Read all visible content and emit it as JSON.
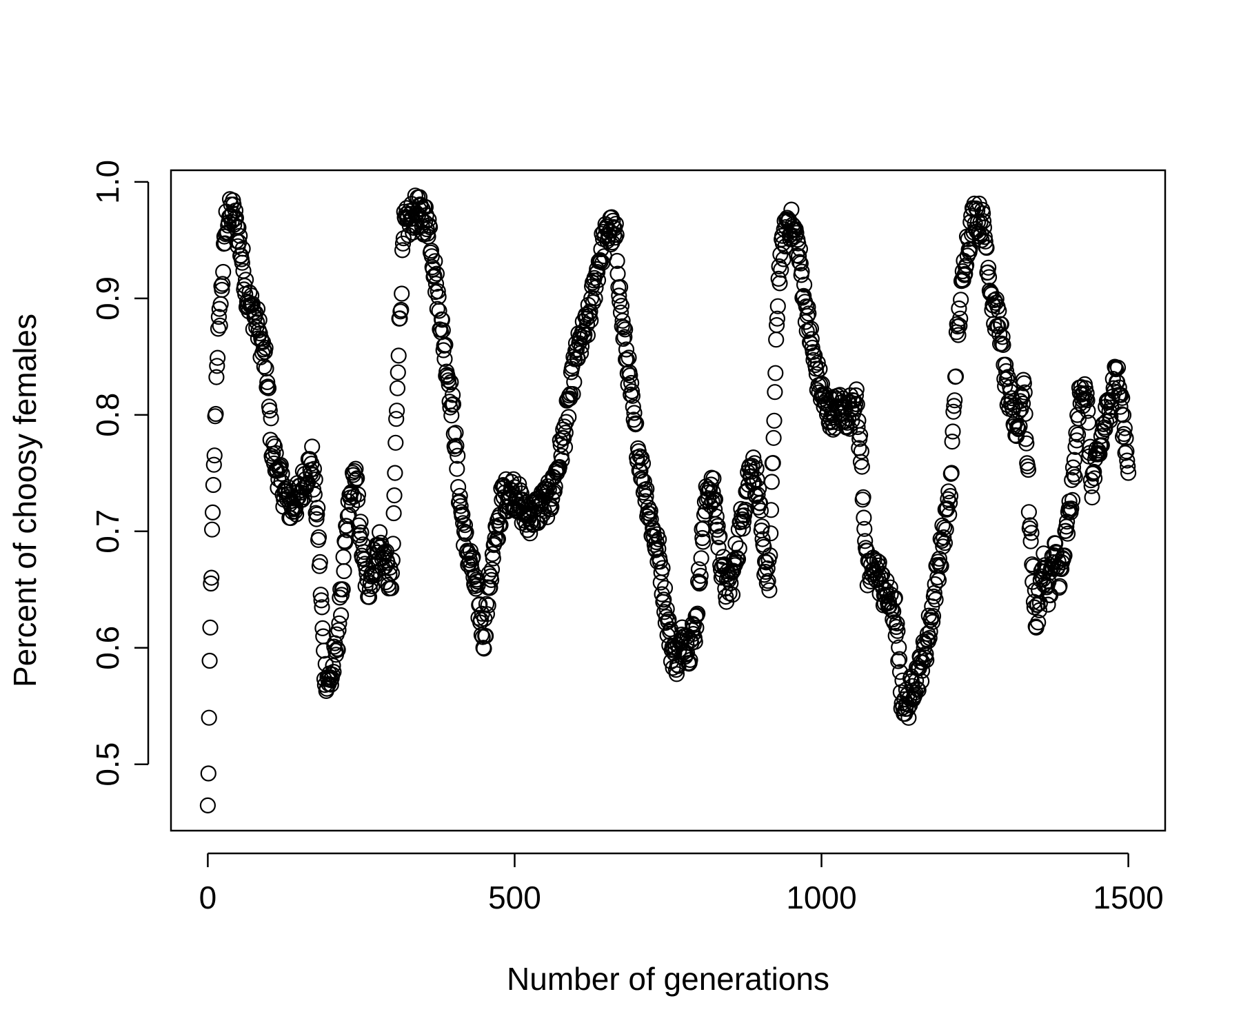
{
  "chart_data": {
    "type": "scatter",
    "title": "",
    "xlabel": "Number of generations",
    "ylabel": "Percent of choosy females",
    "xlim": [
      -60,
      1560
    ],
    "ylim": [
      0.443,
      1.01
    ],
    "x_ticks": [
      0,
      500,
      1000,
      1500
    ],
    "x_tick_labels": [
      "0",
      "500",
      "1000",
      "1500"
    ],
    "y_ticks": [
      0.5,
      0.6,
      0.7,
      0.8,
      0.9,
      1.0
    ],
    "y_tick_labels": [
      "0.5",
      "0.6",
      "0.7",
      "0.8",
      "0.9",
      "1.0"
    ],
    "grid": false,
    "legend": "none",
    "marker": "open-circle",
    "marker_color": "#000000",
    "trend_keypoints": {
      "x": [
        0,
        5,
        15,
        30,
        40,
        50,
        65,
        80,
        95,
        105,
        120,
        135,
        150,
        160,
        170,
        180,
        190,
        200,
        210,
        220,
        230,
        240,
        250,
        260,
        270,
        280,
        290,
        300,
        310,
        320,
        340,
        360,
        375,
        390,
        400,
        410,
        420,
        430,
        440,
        450,
        460,
        480,
        500,
        520,
        540,
        560,
        580,
        600,
        620,
        640,
        655,
        665,
        675,
        685,
        695,
        705,
        715,
        725,
        735,
        745,
        755,
        765,
        775,
        785,
        795,
        805,
        815,
        825,
        835,
        845,
        855,
        870,
        885,
        895,
        905,
        915,
        930,
        945,
        960,
        975,
        990,
        1010,
        1030,
        1045,
        1055,
        1065,
        1075,
        1090,
        1100,
        1110,
        1120,
        1130,
        1140,
        1150,
        1160,
        1170,
        1180,
        1190,
        1200,
        1210,
        1220,
        1235,
        1250,
        1265,
        1280,
        1290,
        1300,
        1310,
        1320,
        1330,
        1340,
        1350,
        1360,
        1370,
        1380,
        1390,
        1400,
        1410,
        1420,
        1430,
        1440,
        1450,
        1460,
        1470,
        1480,
        1490,
        1500
      ],
      "y": [
        0.46,
        0.65,
        0.85,
        0.965,
        0.975,
        0.955,
        0.9,
        0.88,
        0.84,
        0.77,
        0.74,
        0.72,
        0.73,
        0.75,
        0.76,
        0.7,
        0.58,
        0.57,
        0.6,
        0.66,
        0.72,
        0.75,
        0.69,
        0.65,
        0.67,
        0.69,
        0.67,
        0.65,
        0.85,
        0.96,
        0.975,
        0.965,
        0.9,
        0.84,
        0.8,
        0.73,
        0.69,
        0.67,
        0.64,
        0.61,
        0.66,
        0.73,
        0.735,
        0.71,
        0.72,
        0.73,
        0.78,
        0.85,
        0.88,
        0.94,
        0.96,
        0.95,
        0.88,
        0.84,
        0.79,
        0.76,
        0.73,
        0.7,
        0.68,
        0.64,
        0.6,
        0.59,
        0.61,
        0.6,
        0.62,
        0.69,
        0.74,
        0.73,
        0.68,
        0.65,
        0.66,
        0.71,
        0.76,
        0.74,
        0.68,
        0.66,
        0.92,
        0.97,
        0.95,
        0.89,
        0.84,
        0.8,
        0.805,
        0.8,
        0.82,
        0.76,
        0.66,
        0.67,
        0.65,
        0.64,
        0.63,
        0.56,
        0.55,
        0.57,
        0.58,
        0.6,
        0.63,
        0.67,
        0.7,
        0.73,
        0.86,
        0.94,
        0.975,
        0.96,
        0.89,
        0.88,
        0.83,
        0.8,
        0.79,
        0.83,
        0.7,
        0.62,
        0.67,
        0.65,
        0.68,
        0.66,
        0.7,
        0.74,
        0.81,
        0.83,
        0.74,
        0.76,
        0.79,
        0.81,
        0.84,
        0.8,
        0.76
      ]
    },
    "points_per_generation": 1,
    "x_range": [
      0,
      1500
    ]
  }
}
